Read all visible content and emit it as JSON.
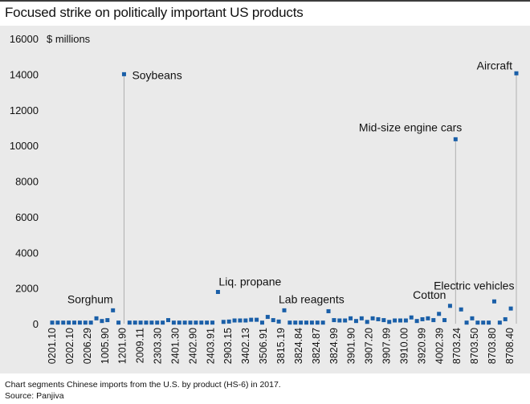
{
  "title": "Focused strike on politically important US products",
  "caption": "Chart segments Chinese imports from the U.S. by product (HS-6) in 2017.",
  "source": "Source: Panjiva",
  "colors": {
    "marker": "#1a5fa8",
    "stem": "#b0b0b0",
    "plot_bg": "#eaeaea",
    "text": "#111111"
  },
  "chart_data": {
    "type": "scatter",
    "title": "Focused strike on politically important US products",
    "ylabel": "$ millions",
    "xlabel": "",
    "ylim": [
      0,
      16000
    ],
    "yticks": [
      0,
      2000,
      4000,
      6000,
      8000,
      10000,
      12000,
      14000,
      16000
    ],
    "grid": false,
    "x_tick_labels": [
      "0201.10",
      "0202.10",
      "0206.29",
      "1005.90",
      "1201.90",
      "2009.11",
      "2303.30",
      "2401.30",
      "2402.90",
      "2403.91",
      "2903.15",
      "3402.13",
      "3506.91",
      "3815.19",
      "3824.84",
      "3824.87",
      "3824.99",
      "3901.90",
      "3907.20",
      "3907.99",
      "3910.00",
      "3920.99",
      "4002.39",
      "8703.24",
      "8703.50",
      "8703.80",
      "8708.40"
    ],
    "values": [
      60,
      60,
      60,
      60,
      60,
      60,
      60,
      60,
      300,
      150,
      200,
      750,
      60,
      14000,
      60,
      60,
      60,
      60,
      60,
      60,
      60,
      200,
      60,
      60,
      60,
      60,
      60,
      60,
      60,
      60,
      1780,
      100,
      120,
      180,
      180,
      180,
      220,
      220,
      60,
      380,
      200,
      120,
      750,
      60,
      60,
      60,
      60,
      60,
      60,
      60,
      700,
      200,
      180,
      180,
      300,
      150,
      300,
      100,
      300,
      250,
      200,
      100,
      180,
      180,
      180,
      350,
      150,
      250,
      300,
      200,
      550,
      200,
      1000,
      10350,
      800,
      60,
      300,
      60,
      60,
      60,
      1250,
      60,
      250,
      850,
      14050
    ],
    "annotations": [
      {
        "label": "Sorghum",
        "index": 11
      },
      {
        "label": "Soybeans",
        "index": 13
      },
      {
        "label": "Liq. propane",
        "index": 30
      },
      {
        "label": "Lab reagents",
        "index": 42
      },
      {
        "label": "Cotton",
        "index": 72
      },
      {
        "label": "Mid-size engine cars",
        "index": 73
      },
      {
        "label": "Electric vehicles",
        "index": 80
      },
      {
        "label": "Aircraft",
        "index": 84
      }
    ]
  }
}
